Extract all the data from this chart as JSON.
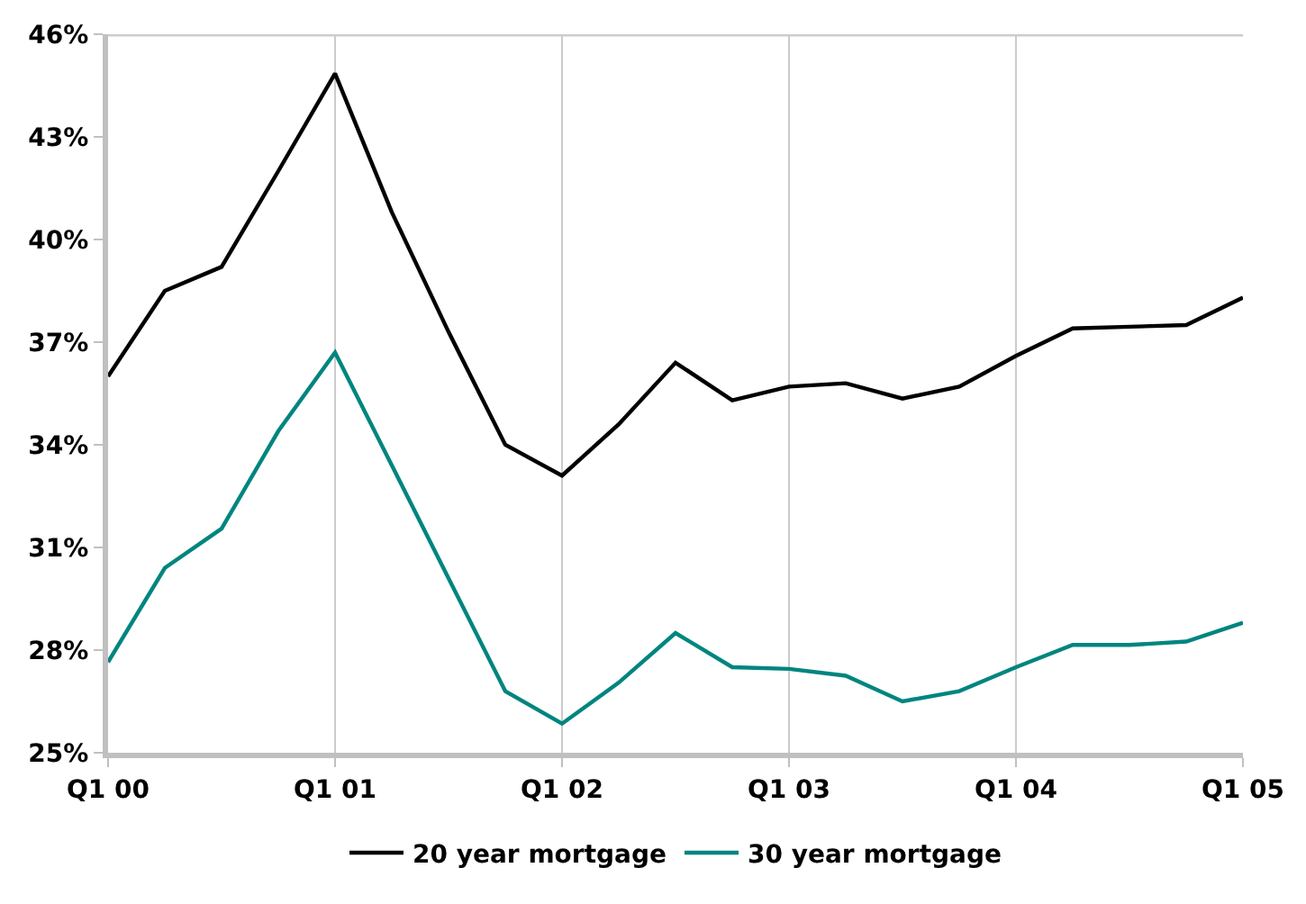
{
  "chart_data": {
    "type": "line",
    "categories": [
      "Q1 00",
      null,
      null,
      null,
      "Q1 01",
      null,
      null,
      null,
      "Q1 02",
      null,
      null,
      null,
      "Q1 03",
      null,
      null,
      null,
      "Q1 04",
      null,
      null,
      null,
      "Q1 05"
    ],
    "series": [
      {
        "name": "20 year mortgage",
        "color": "#000000",
        "values": [
          36.0,
          38.5,
          39.2,
          42.0,
          44.85,
          40.8,
          37.3,
          34.0,
          33.1,
          34.6,
          36.4,
          35.3,
          35.7,
          35.8,
          35.35,
          35.7,
          36.6,
          37.4,
          37.45,
          37.5,
          38.3
        ]
      },
      {
        "name": "30 year mortgage",
        "color": "#00857f",
        "values": [
          27.65,
          30.4,
          31.55,
          34.4,
          36.7,
          33.4,
          30.1,
          26.8,
          25.85,
          27.05,
          28.5,
          27.5,
          27.45,
          27.25,
          26.5,
          26.8,
          27.5,
          28.15,
          28.15,
          28.25,
          28.8
        ]
      }
    ],
    "ylim": [
      25,
      46
    ],
    "yticks": [
      {
        "value": 25,
        "label": "25%"
      },
      {
        "value": 28,
        "label": "28%"
      },
      {
        "value": 31,
        "label": "31%"
      },
      {
        "value": 34,
        "label": "34%"
      },
      {
        "value": 37,
        "label": "37%"
      },
      {
        "value": 40,
        "label": "40%"
      },
      {
        "value": 43,
        "label": "43%"
      },
      {
        "value": 46,
        "label": "46%"
      }
    ],
    "grid": "x",
    "legend": "bottom",
    "line_style": "solid"
  }
}
